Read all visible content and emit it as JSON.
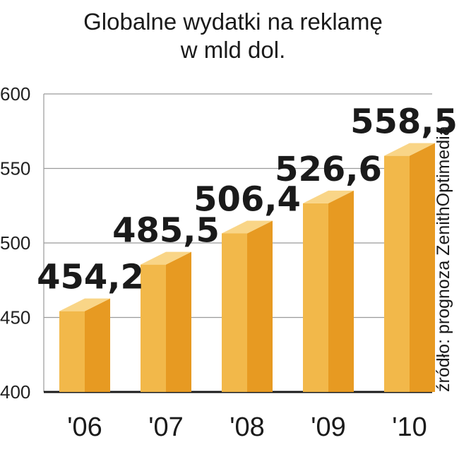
{
  "chart_data": {
    "type": "bar",
    "title_line1": "Globalne wydatki na reklamę",
    "title_line2": "w mld dol.",
    "categories": [
      "'06",
      "'07",
      "'08",
      "'09",
      "'10"
    ],
    "values": [
      454.2,
      485.5,
      506.4,
      526.6,
      558.5
    ],
    "value_labels": [
      "454,2",
      "485,5",
      "506,4",
      "526,6",
      "558,5"
    ],
    "yticks": [
      400,
      450,
      500,
      550,
      600
    ],
    "ylim": [
      400,
      600
    ],
    "grid": true,
    "source": "źródło: prognoza ZenithOptimedia"
  },
  "colors": {
    "bar_front": "#f2b84a",
    "bar_side": "#e79a22",
    "bar_top": "#f9d587",
    "grid": "#9a9a9a",
    "axis": "#1a1a1a",
    "text": "#1a1a1a"
  }
}
